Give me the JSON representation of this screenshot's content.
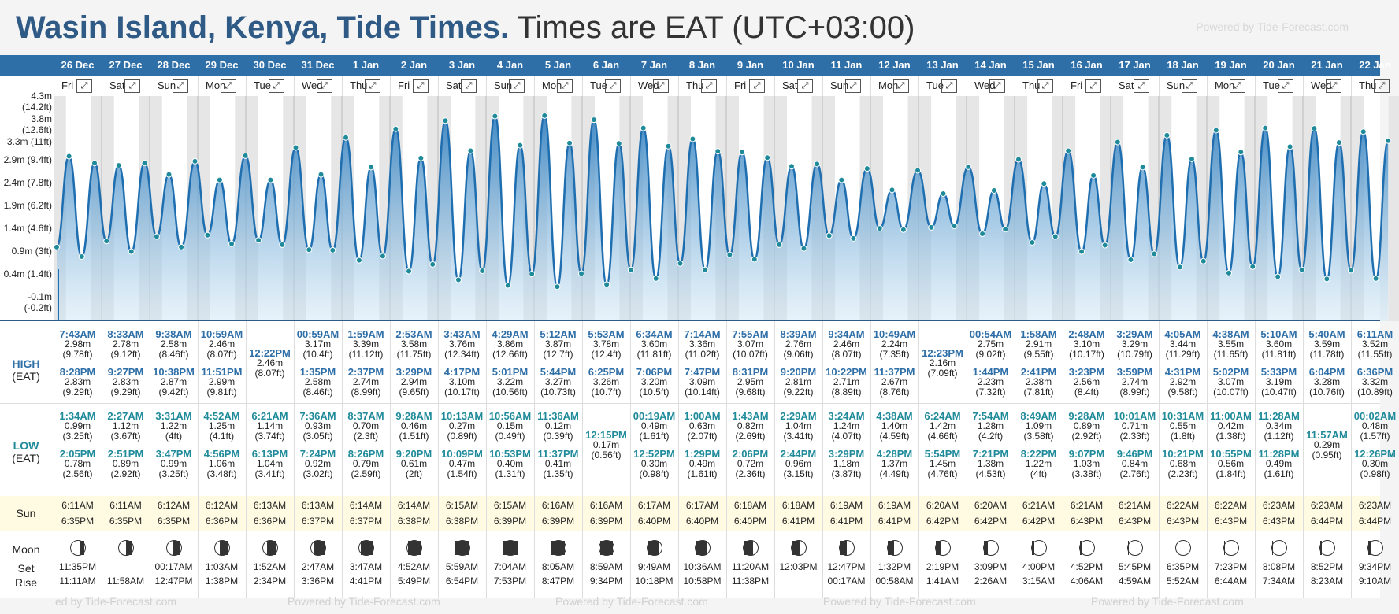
{
  "title": {
    "place": "Wasin Island, Kenya, Tide Times.",
    "tz": "Times are EAT (UTC+03:00)"
  },
  "watermark": "Powered by Tide-Forecast.com",
  "watermark_bottom": "ed by Tide-Forecast.com",
  "colors": {
    "header": "#2f6fa8",
    "high": "#2f6fa8",
    "low": "#1f8b9a",
    "sun_bg": "#fffbe2"
  },
  "labels": {
    "high": "HIGH",
    "low": "LOW",
    "eat": "(EAT)",
    "sun": "Sun",
    "moon": "Moon",
    "set": "Set",
    "rise": "Rise"
  },
  "y_axis": [
    "4.3m (14.2ft)",
    "3.8m (12.6ft)",
    "3.3m (11ft)",
    "2.9m (9.4ft)",
    "2.4m (7.8ft)",
    "1.9m (6.2ft)",
    "1.4m (4.6ft)",
    "0.9m (3ft)",
    "0.4m (1.4ft)",
    "-0.1m (-0.2ft)"
  ],
  "days": [
    {
      "date": "26 Dec",
      "wd": "Fri",
      "hi": [
        [
          "7:43AM",
          "2.98m",
          "(9.78ft)"
        ],
        [
          "8:28PM",
          "2.83m",
          "(9.29ft)"
        ]
      ],
      "lo": [
        [
          "1:34AM",
          "0.99m",
          "(3.25ft)"
        ],
        [
          "2:05PM",
          "0.78m",
          "(2.56ft)"
        ]
      ],
      "sunrise": "6:11AM",
      "sunset": "6:35PM",
      "moonset": "11:35PM",
      "moonrise": "11:11AM",
      "phase": 0.35
    },
    {
      "date": "27 Dec",
      "wd": "Sat",
      "hi": [
        [
          "8:33AM",
          "2.78m",
          "(9.12ft)"
        ],
        [
          "9:27PM",
          "2.83m",
          "(9.29ft)"
        ]
      ],
      "lo": [
        [
          "2:27AM",
          "1.12m",
          "(3.67ft)"
        ],
        [
          "2:51PM",
          "0.89m",
          "(2.92ft)"
        ]
      ],
      "sunrise": "6:11AM",
      "sunset": "6:35PM",
      "moonset": "",
      "moonrise": "11:58AM",
      "phase": 0.45
    },
    {
      "date": "28 Dec",
      "wd": "Sun",
      "hi": [
        [
          "9:38AM",
          "2.58m",
          "(8.46ft)"
        ],
        [
          "10:38PM",
          "2.87m",
          "(9.42ft)"
        ]
      ],
      "lo": [
        [
          "3:31AM",
          "1.22m",
          "(4ft)"
        ],
        [
          "3:47PM",
          "0.99m",
          "(3.25ft)"
        ]
      ],
      "sunrise": "6:12AM",
      "sunset": "6:35PM",
      "moonset": "00:17AM",
      "moonrise": "12:47PM",
      "phase": 0.55
    },
    {
      "date": "29 Dec",
      "wd": "Mon",
      "hi": [
        [
          "10:59AM",
          "2.46m",
          "(8.07ft)"
        ],
        [
          "11:51PM",
          "2.99m",
          "(9.81ft)"
        ]
      ],
      "lo": [
        [
          "4:52AM",
          "1.25m",
          "(4.1ft)"
        ],
        [
          "4:56PM",
          "1.06m",
          "(3.48ft)"
        ]
      ],
      "sunrise": "6:12AM",
      "sunset": "6:36PM",
      "moonset": "1:03AM",
      "moonrise": "1:38PM",
      "phase": 0.62
    },
    {
      "date": "30 Dec",
      "wd": "Tue",
      "hi": [
        [
          "12:22PM",
          "2.46m",
          "(8.07ft)"
        ]
      ],
      "lo": [
        [
          "6:21AM",
          "1.14m",
          "(3.74ft)"
        ],
        [
          "6:13PM",
          "1.04m",
          "(3.41ft)"
        ]
      ],
      "sunrise": "6:13AM",
      "sunset": "6:36PM",
      "moonset": "1:52AM",
      "moonrise": "2:34PM",
      "phase": 0.7
    },
    {
      "date": "31 Dec",
      "wd": "Wed",
      "hi": [
        [
          "00:59AM",
          "3.17m",
          "(10.4ft)"
        ],
        [
          "1:35PM",
          "2.58m",
          "(8.46ft)"
        ]
      ],
      "lo": [
        [
          "7:36AM",
          "0.93m",
          "(3.05ft)"
        ],
        [
          "7:24PM",
          "0.92m",
          "(3.02ft)"
        ]
      ],
      "sunrise": "6:13AM",
      "sunset": "6:37PM",
      "moonset": "2:47AM",
      "moonrise": "3:36PM",
      "phase": 0.78
    },
    {
      "date": "1 Jan",
      "wd": "Thu",
      "hi": [
        [
          "1:59AM",
          "3.39m",
          "(11.12ft)"
        ],
        [
          "2:37PM",
          "2.74m",
          "(8.99ft)"
        ]
      ],
      "lo": [
        [
          "8:37AM",
          "0.70m",
          "(2.3ft)"
        ],
        [
          "8:26PM",
          "0.79m",
          "(2.59ft)"
        ]
      ],
      "sunrise": "6:14AM",
      "sunset": "6:37PM",
      "moonset": "3:47AM",
      "moonrise": "4:41PM",
      "phase": 0.86
    },
    {
      "date": "2 Jan",
      "wd": "Fri",
      "hi": [
        [
          "2:53AM",
          "3.58m",
          "(11.75ft)"
        ],
        [
          "3:29PM",
          "2.94m",
          "(9.65ft)"
        ]
      ],
      "lo": [
        [
          "9:28AM",
          "0.46m",
          "(1.51ft)"
        ],
        [
          "9:20PM",
          "0.61m",
          "(2ft)"
        ]
      ],
      "sunrise": "6:14AM",
      "sunset": "6:38PM",
      "moonset": "4:52AM",
      "moonrise": "5:49PM",
      "phase": 0.93
    },
    {
      "date": "3 Jan",
      "wd": "Sat",
      "hi": [
        [
          "3:43AM",
          "3.76m",
          "(12.34ft)"
        ],
        [
          "4:17PM",
          "3.10m",
          "(10.17ft)"
        ]
      ],
      "lo": [
        [
          "10:13AM",
          "0.27m",
          "(0.89ft)"
        ],
        [
          "10:09PM",
          "0.47m",
          "(1.54ft)"
        ]
      ],
      "sunrise": "6:15AM",
      "sunset": "6:38PM",
      "moonset": "5:59AM",
      "moonrise": "6:54PM",
      "phase": 1.0
    },
    {
      "date": "4 Jan",
      "wd": "Sun",
      "hi": [
        [
          "4:29AM",
          "3.86m",
          "(12.66ft)"
        ],
        [
          "5:01PM",
          "3.22m",
          "(10.56ft)"
        ]
      ],
      "lo": [
        [
          "10:56AM",
          "0.15m",
          "(0.49ft)"
        ],
        [
          "10:53PM",
          "0.40m",
          "(1.31ft)"
        ]
      ],
      "sunrise": "6:15AM",
      "sunset": "6:39PM",
      "moonset": "7:04AM",
      "moonrise": "7:53PM",
      "phase": 1.0
    },
    {
      "date": "5 Jan",
      "wd": "Mon",
      "hi": [
        [
          "5:12AM",
          "3.87m",
          "(12.7ft)"
        ],
        [
          "5:44PM",
          "3.27m",
          "(10.73ft)"
        ]
      ],
      "lo": [
        [
          "11:36AM",
          "0.12m",
          "(0.39ft)"
        ],
        [
          "11:37PM",
          "0.41m",
          "(1.35ft)"
        ]
      ],
      "sunrise": "6:16AM",
      "sunset": "6:39PM",
      "moonset": "8:05AM",
      "moonrise": "8:47PM",
      "phase": 0.97
    },
    {
      "date": "6 Jan",
      "wd": "Tue",
      "hi": [
        [
          "5:53AM",
          "3.78m",
          "(12.4ft)"
        ],
        [
          "6:25PM",
          "3.26m",
          "(10.7ft)"
        ]
      ],
      "lo": [
        [
          "12:15PM",
          "0.17m",
          "(0.56ft)"
        ]
      ],
      "sunrise": "6:16AM",
      "sunset": "6:39PM",
      "moonset": "8:59AM",
      "moonrise": "9:34PM",
      "phase": 0.93
    },
    {
      "date": "7 Jan",
      "wd": "Wed",
      "hi": [
        [
          "6:34AM",
          "3.60m",
          "(11.81ft)"
        ],
        [
          "7:06PM",
          "3.20m",
          "(10.5ft)"
        ]
      ],
      "lo": [
        [
          "00:19AM",
          "0.49m",
          "(1.61ft)"
        ],
        [
          "12:52PM",
          "0.30m",
          "(0.98ft)"
        ]
      ],
      "sunrise": "6:17AM",
      "sunset": "6:40PM",
      "moonset": "9:49AM",
      "moonrise": "10:18PM",
      "phase": 0.88
    },
    {
      "date": "8 Jan",
      "wd": "Thu",
      "hi": [
        [
          "7:14AM",
          "3.36m",
          "(11.02ft)"
        ],
        [
          "7:47PM",
          "3.09m",
          "(10.14ft)"
        ]
      ],
      "lo": [
        [
          "1:00AM",
          "0.63m",
          "(2.07ft)"
        ],
        [
          "1:29PM",
          "0.49m",
          "(1.61ft)"
        ]
      ],
      "sunrise": "6:17AM",
      "sunset": "6:40PM",
      "moonset": "10:36AM",
      "moonrise": "10:58PM",
      "phase": 0.8
    },
    {
      "date": "9 Jan",
      "wd": "Fri",
      "hi": [
        [
          "7:55AM",
          "3.07m",
          "(10.07ft)"
        ],
        [
          "8:31PM",
          "2.95m",
          "(9.68ft)"
        ]
      ],
      "lo": [
        [
          "1:43AM",
          "0.82m",
          "(2.69ft)"
        ],
        [
          "2:06PM",
          "0.72m",
          "(2.36ft)"
        ]
      ],
      "sunrise": "6:18AM",
      "sunset": "6:40PM",
      "moonset": "11:20AM",
      "moonrise": "11:38PM",
      "phase": 0.72
    },
    {
      "date": "10 Jan",
      "wd": "Sat",
      "hi": [
        [
          "8:39AM",
          "2.76m",
          "(9.06ft)"
        ],
        [
          "9:20PM",
          "2.81m",
          "(9.22ft)"
        ]
      ],
      "lo": [
        [
          "2:29AM",
          "1.04m",
          "(3.41ft)"
        ],
        [
          "2:44PM",
          "0.96m",
          "(3.15ft)"
        ]
      ],
      "sunrise": "6:18AM",
      "sunset": "6:41PM",
      "moonset": "12:03PM",
      "moonrise": "",
      "phase": 0.64
    },
    {
      "date": "11 Jan",
      "wd": "Sun",
      "hi": [
        [
          "9:34AM",
          "2.46m",
          "(8.07ft)"
        ],
        [
          "10:22PM",
          "2.71m",
          "(8.89ft)"
        ]
      ],
      "lo": [
        [
          "3:24AM",
          "1.24m",
          "(4.07ft)"
        ],
        [
          "3:29PM",
          "1.18m",
          "(3.87ft)"
        ]
      ],
      "sunrise": "6:19AM",
      "sunset": "6:41PM",
      "moonset": "12:47PM",
      "moonrise": "00:17AM",
      "phase": 0.55
    },
    {
      "date": "12 Jan",
      "wd": "Mon",
      "hi": [
        [
          "10:49AM",
          "2.24m",
          "(7.35ft)"
        ],
        [
          "11:37PM",
          "2.67m",
          "(8.76ft)"
        ]
      ],
      "lo": [
        [
          "4:38AM",
          "1.40m",
          "(4.59ft)"
        ],
        [
          "4:28PM",
          "1.37m",
          "(4.49ft)"
        ]
      ],
      "sunrise": "6:19AM",
      "sunset": "6:41PM",
      "moonset": "1:32PM",
      "moonrise": "00:58AM",
      "phase": 0.45
    },
    {
      "date": "13 Jan",
      "wd": "Tue",
      "hi": [
        [
          "12:23PM",
          "2.16m",
          "(7.09ft)"
        ]
      ],
      "lo": [
        [
          "6:24AM",
          "1.42m",
          "(4.66ft)"
        ],
        [
          "5:54PM",
          "1.45m",
          "(4.76ft)"
        ]
      ],
      "sunrise": "6:20AM",
      "sunset": "6:42PM",
      "moonset": "2:19PM",
      "moonrise": "1:41AM",
      "phase": 0.36
    },
    {
      "date": "14 Jan",
      "wd": "Wed",
      "hi": [
        [
          "00:54AM",
          "2.75m",
          "(9.02ft)"
        ],
        [
          "1:44PM",
          "2.23m",
          "(7.32ft)"
        ]
      ],
      "lo": [
        [
          "7:54AM",
          "1.28m",
          "(4.2ft)"
        ],
        [
          "7:21PM",
          "1.38m",
          "(4.53ft)"
        ]
      ],
      "sunrise": "6:20AM",
      "sunset": "6:42PM",
      "moonset": "3:09PM",
      "moonrise": "2:26AM",
      "phase": 0.28
    },
    {
      "date": "15 Jan",
      "wd": "Thu",
      "hi": [
        [
          "1:58AM",
          "2.91m",
          "(9.55ft)"
        ],
        [
          "2:41PM",
          "2.38m",
          "(7.81ft)"
        ]
      ],
      "lo": [
        [
          "8:49AM",
          "1.09m",
          "(3.58ft)"
        ],
        [
          "8:22PM",
          "1.22m",
          "(4ft)"
        ]
      ],
      "sunrise": "6:21AM",
      "sunset": "6:42PM",
      "moonset": "4:00PM",
      "moonrise": "3:15AM",
      "phase": 0.2
    },
    {
      "date": "16 Jan",
      "wd": "Fri",
      "hi": [
        [
          "2:48AM",
          "3.10m",
          "(10.17ft)"
        ],
        [
          "3:23PM",
          "2.56m",
          "(8.4ft)"
        ]
      ],
      "lo": [
        [
          "9:28AM",
          "0.89m",
          "(2.92ft)"
        ],
        [
          "9:07PM",
          "1.03m",
          "(3.38ft)"
        ]
      ],
      "sunrise": "6:21AM",
      "sunset": "6:43PM",
      "moonset": "4:52PM",
      "moonrise": "4:06AM",
      "phase": 0.12
    },
    {
      "date": "17 Jan",
      "wd": "Sat",
      "hi": [
        [
          "3:29AM",
          "3.29m",
          "(10.79ft)"
        ],
        [
          "3:59PM",
          "2.74m",
          "(8.99ft)"
        ]
      ],
      "lo": [
        [
          "10:01AM",
          "0.71m",
          "(2.33ft)"
        ],
        [
          "9:46PM",
          "0.84m",
          "(2.76ft)"
        ]
      ],
      "sunrise": "6:21AM",
      "sunset": "6:43PM",
      "moonset": "5:45PM",
      "moonrise": "4:59AM",
      "phase": 0.05
    },
    {
      "date": "18 Jan",
      "wd": "Sun",
      "hi": [
        [
          "4:05AM",
          "3.44m",
          "(11.29ft)"
        ],
        [
          "4:31PM",
          "2.92m",
          "(9.58ft)"
        ]
      ],
      "lo": [
        [
          "10:31AM",
          "0.55m",
          "(1.8ft)"
        ],
        [
          "10:21PM",
          "0.68m",
          "(2.23ft)"
        ]
      ],
      "sunrise": "6:22AM",
      "sunset": "6:43PM",
      "moonset": "6:35PM",
      "moonrise": "5:52AM",
      "phase": 0.0
    },
    {
      "date": "19 Jan",
      "wd": "Mon",
      "hi": [
        [
          "4:38AM",
          "3.55m",
          "(11.65ft)"
        ],
        [
          "5:02PM",
          "3.07m",
          "(10.07ft)"
        ]
      ],
      "lo": [
        [
          "11:00AM",
          "0.42m",
          "(1.38ft)"
        ],
        [
          "10:55PM",
          "0.56m",
          "(1.84ft)"
        ]
      ],
      "sunrise": "6:22AM",
      "sunset": "6:43PM",
      "moonset": "7:23PM",
      "moonrise": "6:44AM",
      "phase": 0.03
    },
    {
      "date": "20 Jan",
      "wd": "Tue",
      "hi": [
        [
          "5:10AM",
          "3.60m",
          "(11.81ft)"
        ],
        [
          "5:33PM",
          "3.19m",
          "(10.47ft)"
        ]
      ],
      "lo": [
        [
          "11:28AM",
          "0.34m",
          "(1.12ft)"
        ],
        [
          "11:28PM",
          "0.49m",
          "(1.61ft)"
        ]
      ],
      "sunrise": "6:23AM",
      "sunset": "6:43PM",
      "moonset": "8:08PM",
      "moonrise": "7:34AM",
      "phase": 0.08
    },
    {
      "date": "21 Jan",
      "wd": "Wed",
      "hi": [
        [
          "5:40AM",
          "3.59m",
          "(11.78ft)"
        ],
        [
          "6:04PM",
          "3.28m",
          "(10.76ft)"
        ]
      ],
      "lo": [
        [
          "11:57AM",
          "0.29m",
          "(0.95ft)"
        ]
      ],
      "sunrise": "6:23AM",
      "sunset": "6:44PM",
      "moonset": "8:52PM",
      "moonrise": "8:23AM",
      "phase": 0.14
    },
    {
      "date": "22 Jan",
      "wd": "Thu",
      "hi": [
        [
          "6:11AM",
          "3.52m",
          "(11.55ft)"
        ],
        [
          "6:36PM",
          "3.32m",
          "(10.89ft)"
        ]
      ],
      "lo": [
        [
          "00:02AM",
          "0.48m",
          "(1.57ft)"
        ],
        [
          "12:26PM",
          "0.30m",
          "(0.98ft)"
        ]
      ],
      "sunrise": "6:23AM",
      "sunset": "6:44PM",
      "moonset": "9:34PM",
      "moonrise": "9:10AM",
      "phase": 0.2
    }
  ]
}
